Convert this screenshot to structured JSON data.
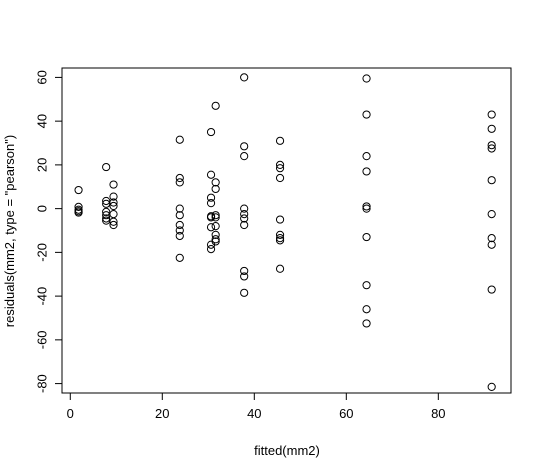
{
  "chart_data": {
    "type": "scatter",
    "title": "",
    "xlabel": "fitted(mm2)",
    "ylabel": "residuals(mm2, type = \"pearson\")",
    "xlim": [
      -1.8,
      95.8
    ],
    "ylim": [
      -84.3,
      64.3
    ],
    "x_ticks": [
      0,
      20,
      40,
      60,
      80
    ],
    "y_ticks": [
      -80,
      -60,
      -40,
      -20,
      0,
      20,
      40,
      60
    ],
    "grid": false,
    "legend": "none",
    "marker": "open-circle",
    "colors": {
      "points": "#000000",
      "frame": "#000000",
      "background": "#ffffff"
    },
    "points": [
      {
        "x": 1.8,
        "y": 8.5
      },
      {
        "x": 1.8,
        "y": 0.8
      },
      {
        "x": 1.8,
        "y": -0.5
      },
      {
        "x": 1.8,
        "y": -1.2
      },
      {
        "x": 1.8,
        "y": -1.8
      },
      {
        "x": 7.8,
        "y": 19.0
      },
      {
        "x": 7.8,
        "y": 3.5
      },
      {
        "x": 7.8,
        "y": 2.2
      },
      {
        "x": 7.8,
        "y": -1.5
      },
      {
        "x": 7.8,
        "y": -3.0
      },
      {
        "x": 7.8,
        "y": -4.5
      },
      {
        "x": 7.8,
        "y": -5.5
      },
      {
        "x": 9.4,
        "y": 11.0
      },
      {
        "x": 9.4,
        "y": 5.5
      },
      {
        "x": 9.4,
        "y": 2.8
      },
      {
        "x": 9.4,
        "y": 1.2
      },
      {
        "x": 9.4,
        "y": -2.5
      },
      {
        "x": 9.4,
        "y": -6.0
      },
      {
        "x": 9.4,
        "y": -7.5
      },
      {
        "x": 23.8,
        "y": 31.5
      },
      {
        "x": 23.8,
        "y": 14.0
      },
      {
        "x": 23.8,
        "y": 12.0
      },
      {
        "x": 23.8,
        "y": 0.0
      },
      {
        "x": 23.8,
        "y": -3.0
      },
      {
        "x": 23.8,
        "y": -7.5
      },
      {
        "x": 23.8,
        "y": -10.0
      },
      {
        "x": 23.8,
        "y": -12.5
      },
      {
        "x": 23.8,
        "y": -22.5
      },
      {
        "x": 30.6,
        "y": 35.0
      },
      {
        "x": 30.6,
        "y": 15.5
      },
      {
        "x": 30.6,
        "y": 5.0
      },
      {
        "x": 30.6,
        "y": 2.5
      },
      {
        "x": 30.6,
        "y": -3.5
      },
      {
        "x": 30.6,
        "y": -4.0
      },
      {
        "x": 30.6,
        "y": -8.5
      },
      {
        "x": 30.6,
        "y": -16.5
      },
      {
        "x": 30.6,
        "y": -18.5
      },
      {
        "x": 31.6,
        "y": 47.0
      },
      {
        "x": 31.6,
        "y": 12.0
      },
      {
        "x": 31.6,
        "y": 9.0
      },
      {
        "x": 31.6,
        "y": -3.0
      },
      {
        "x": 31.6,
        "y": -4.0
      },
      {
        "x": 31.6,
        "y": -8.0
      },
      {
        "x": 31.6,
        "y": -12.0
      },
      {
        "x": 31.6,
        "y": -14.0
      },
      {
        "x": 31.6,
        "y": -15.0
      },
      {
        "x": 37.8,
        "y": 60.0
      },
      {
        "x": 37.8,
        "y": 28.5
      },
      {
        "x": 37.8,
        "y": 24.0
      },
      {
        "x": 37.8,
        "y": 0.0
      },
      {
        "x": 37.8,
        "y": -2.5
      },
      {
        "x": 37.8,
        "y": -4.5
      },
      {
        "x": 37.8,
        "y": -7.5
      },
      {
        "x": 37.8,
        "y": -28.5
      },
      {
        "x": 37.8,
        "y": -31.0
      },
      {
        "x": 37.8,
        "y": -38.5
      },
      {
        "x": 45.6,
        "y": 31.0
      },
      {
        "x": 45.6,
        "y": 20.0
      },
      {
        "x": 45.6,
        "y": 18.5
      },
      {
        "x": 45.6,
        "y": 14.0
      },
      {
        "x": 45.6,
        "y": -5.0
      },
      {
        "x": 45.6,
        "y": -12.0
      },
      {
        "x": 45.6,
        "y": -13.5
      },
      {
        "x": 45.6,
        "y": -14.5
      },
      {
        "x": 45.6,
        "y": -27.5
      },
      {
        "x": 64.4,
        "y": 59.5
      },
      {
        "x": 64.4,
        "y": 43.0
      },
      {
        "x": 64.4,
        "y": 24.0
      },
      {
        "x": 64.4,
        "y": 17.0
      },
      {
        "x": 64.4,
        "y": 1.0
      },
      {
        "x": 64.4,
        "y": 0.0
      },
      {
        "x": 64.4,
        "y": -13.0
      },
      {
        "x": 64.4,
        "y": -35.0
      },
      {
        "x": 64.4,
        "y": -46.0
      },
      {
        "x": 64.4,
        "y": -52.5
      },
      {
        "x": 91.6,
        "y": 43.0
      },
      {
        "x": 91.6,
        "y": 36.5
      },
      {
        "x": 91.6,
        "y": 29.0
      },
      {
        "x": 91.6,
        "y": 27.5
      },
      {
        "x": 91.6,
        "y": 13.0
      },
      {
        "x": 91.6,
        "y": -2.5
      },
      {
        "x": 91.6,
        "y": -13.5
      },
      {
        "x": 91.6,
        "y": -16.5
      },
      {
        "x": 91.6,
        "y": -37.0
      },
      {
        "x": 91.6,
        "y": -81.5
      }
    ]
  }
}
